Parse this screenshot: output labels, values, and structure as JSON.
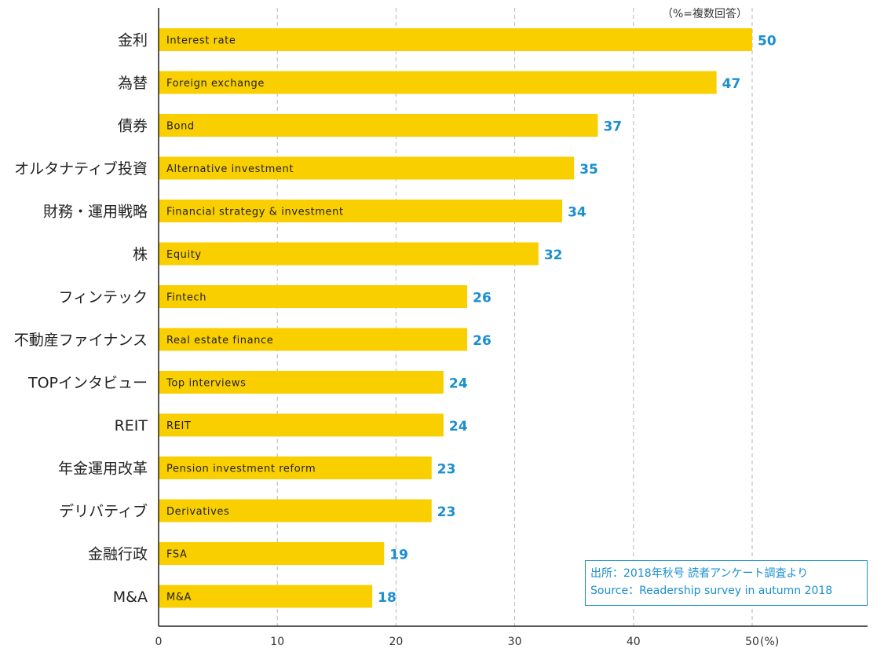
{
  "chart_data": {
    "type": "bar",
    "orientation": "horizontal",
    "categories": [
      "金利",
      "為替",
      "債券",
      "オルタナティブ投資",
      "財務・運用戦略",
      "株",
      "フィンテック",
      "不動産ファイナンス",
      "TOPインタビュー",
      "REIT",
      "年金運用改革",
      "デリバティブ",
      "金融行政",
      "M&A"
    ],
    "categories_en": [
      "Interest rate",
      "Foreign exchange",
      "Bond",
      "Alternative investment",
      "Financial strategy & investment",
      "Equity",
      "Fintech",
      "Real estate finance",
      "Top interviews",
      "REIT",
      "Pension investment reform",
      "Derivatives",
      "FSA",
      "M&A"
    ],
    "values": [
      50,
      47,
      37,
      35,
      34,
      32,
      26,
      26,
      24,
      24,
      23,
      23,
      19,
      18
    ],
    "xlim": [
      0,
      58
    ],
    "xticks": [
      "0",
      "10",
      "20",
      "30",
      "40",
      "50"
    ],
    "x_unit": "(%)",
    "note": "（%=複数回答）",
    "grid": "vertical dashed",
    "bar_color": "#f9cf00",
    "value_color": "#1a8fd0",
    "axis_color": "#222222"
  },
  "source": {
    "line1": "出所：2018年秋号 読者アンケート調査より",
    "line2": "Source：Readership survey in autumn 2018",
    "color": "#1a8fd0"
  }
}
